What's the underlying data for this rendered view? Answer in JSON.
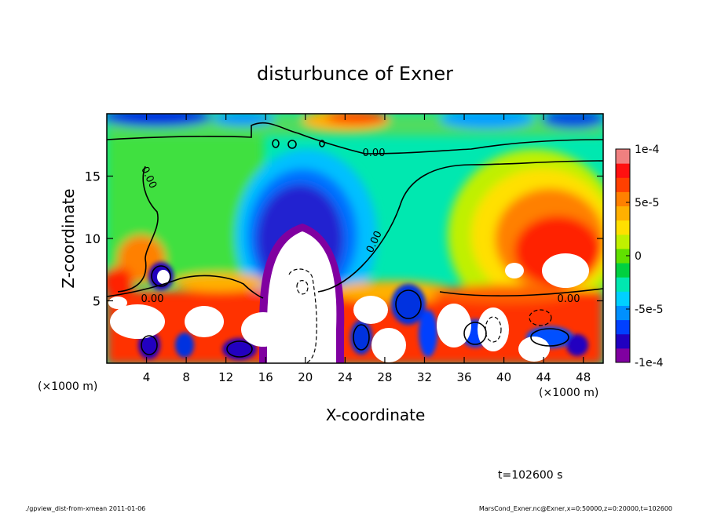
{
  "chart_data": {
    "type": "heatmap",
    "title": "disturbunce of Exner",
    "xlabel": "X-coordinate",
    "ylabel": "Z-coordinate",
    "x_unit": "(×1000 m)",
    "y_unit": "(×1000 m)",
    "xlim": [
      0,
      50
    ],
    "ylim": [
      0,
      20
    ],
    "x_ticks": [
      4,
      8,
      12,
      16,
      20,
      24,
      28,
      32,
      36,
      40,
      44,
      48
    ],
    "y_ticks": [
      5,
      10,
      15
    ],
    "colorbar": {
      "min": -0.0001,
      "max": 0.0001,
      "tick_values": [
        0.0001,
        5e-05,
        0,
        -5e-05,
        -0.0001
      ],
      "tick_labels": [
        "1e-4",
        "5e-5",
        "0",
        "-5e-5",
        "-1e-4"
      ],
      "colors": [
        "#8000a0",
        "#2000c0",
        "#0040ff",
        "#0090ff",
        "#00d0ff",
        "#00e8b0",
        "#00d040",
        "#60e000",
        "#c0f000",
        "#ffe000",
        "#ffb000",
        "#ff8000",
        "#ff4000",
        "#ff1010",
        "#f08080"
      ]
    },
    "contour_labels": [
      "0.00",
      "0.00",
      "0.00",
      "0.00",
      "0.00"
    ],
    "time_label": "t=102600 s"
  },
  "footer": {
    "left": "./gpview_dist-from-xmean  2011-01-06",
    "right": "MarsCond_Exner.nc@Exner,x=0:50000,z=0:20000,t=102600"
  }
}
